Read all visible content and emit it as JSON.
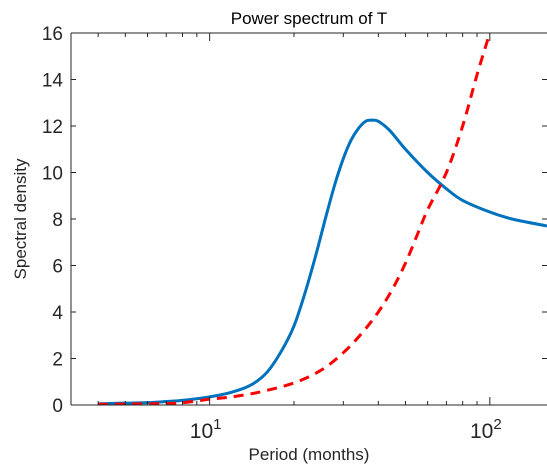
{
  "chart_data": {
    "type": "line",
    "title": "Power spectrum of T",
    "xlabel": "Period (months)",
    "ylabel": "Spectral density",
    "xscale": "log",
    "xlim": [
      3.2,
      160
    ],
    "ylim": [
      0,
      16
    ],
    "grid": false,
    "legend": "none",
    "x_ticks": [
      {
        "value": 10,
        "base": "10",
        "exp": "1"
      },
      {
        "value": 100,
        "base": "10",
        "exp": "2"
      }
    ],
    "y_ticks": [
      "0",
      "2",
      "4",
      "6",
      "8",
      "10",
      "12",
      "14",
      "16"
    ],
    "series": [
      {
        "style": "solid",
        "color": "#0072BD",
        "points": [
          {
            "x": 4,
            "y": 0.05
          },
          {
            "x": 5,
            "y": 0.08
          },
          {
            "x": 6,
            "y": 0.1
          },
          {
            "x": 7,
            "y": 0.15
          },
          {
            "x": 8,
            "y": 0.2
          },
          {
            "x": 10,
            "y": 0.35
          },
          {
            "x": 12,
            "y": 0.55
          },
          {
            "x": 14,
            "y": 0.85
          },
          {
            "x": 16,
            "y": 1.4
          },
          {
            "x": 18,
            "y": 2.3
          },
          {
            "x": 20,
            "y": 3.4
          },
          {
            "x": 22,
            "y": 4.9
          },
          {
            "x": 24,
            "y": 6.5
          },
          {
            "x": 26,
            "y": 8.1
          },
          {
            "x": 28,
            "y": 9.5
          },
          {
            "x": 30,
            "y": 10.6
          },
          {
            "x": 32,
            "y": 11.4
          },
          {
            "x": 34,
            "y": 11.9
          },
          {
            "x": 36,
            "y": 12.2
          },
          {
            "x": 38,
            "y": 12.25
          },
          {
            "x": 40,
            "y": 12.2
          },
          {
            "x": 44,
            "y": 11.8
          },
          {
            "x": 50,
            "y": 11.0
          },
          {
            "x": 60,
            "y": 10.0
          },
          {
            "x": 70,
            "y": 9.3
          },
          {
            "x": 80,
            "y": 8.8
          },
          {
            "x": 100,
            "y": 8.3
          },
          {
            "x": 120,
            "y": 8.0
          },
          {
            "x": 160,
            "y": 7.7
          }
        ]
      },
      {
        "style": "dashed",
        "color": "#FF0000",
        "points": [
          {
            "x": 4,
            "y": 0.03
          },
          {
            "x": 6,
            "y": 0.05
          },
          {
            "x": 8,
            "y": 0.1
          },
          {
            "x": 10,
            "y": 0.25
          },
          {
            "x": 12,
            "y": 0.35
          },
          {
            "x": 15,
            "y": 0.55
          },
          {
            "x": 20,
            "y": 0.95
          },
          {
            "x": 25,
            "y": 1.5
          },
          {
            "x": 30,
            "y": 2.25
          },
          {
            "x": 35,
            "y": 3.1
          },
          {
            "x": 40,
            "y": 4.0
          },
          {
            "x": 45,
            "y": 5.0
          },
          {
            "x": 50,
            "y": 6.1
          },
          {
            "x": 55,
            "y": 7.3
          },
          {
            "x": 60,
            "y": 8.4
          },
          {
            "x": 70,
            "y": 10.0
          },
          {
            "x": 80,
            "y": 12.0
          },
          {
            "x": 90,
            "y": 14.2
          },
          {
            "x": 100,
            "y": 16.0
          }
        ]
      }
    ]
  }
}
